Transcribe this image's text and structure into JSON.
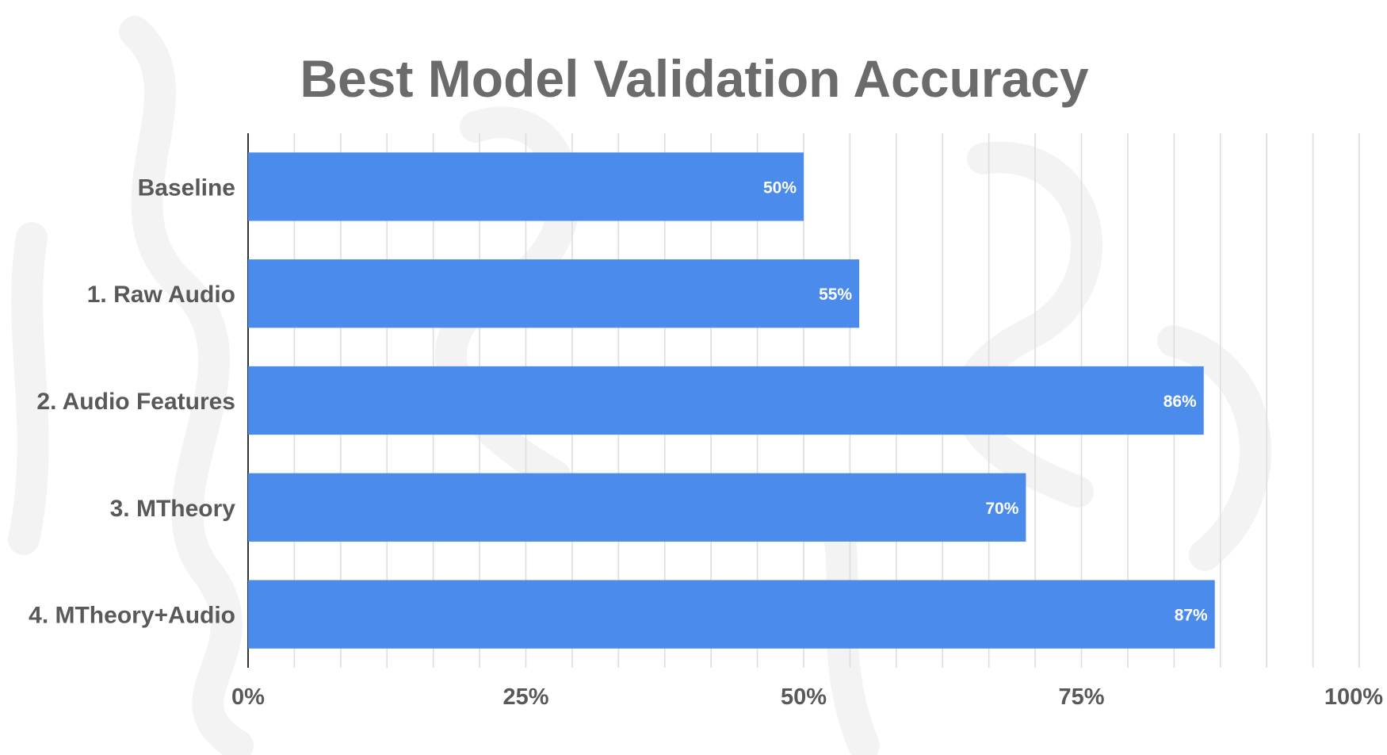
{
  "chart_data": {
    "type": "bar",
    "orientation": "horizontal",
    "title": "Best Model Validation Accuracy",
    "categories": [
      "Baseline",
      "1. Raw Audio",
      "2. Audio Features",
      "3. MTheory",
      "4. MTheory+Audio"
    ],
    "values": [
      50,
      55,
      86,
      70,
      87
    ],
    "data_labels": [
      "50%",
      "55%",
      "86%",
      "70%",
      "87%"
    ],
    "xlabel": "",
    "ylabel": "",
    "xlim": [
      0,
      100
    ],
    "ticks": [
      0,
      25,
      50,
      75,
      100
    ],
    "tick_labels": [
      "0%",
      "25%",
      "50%",
      "75%",
      "100%"
    ],
    "minor_grid_step": 4.1667,
    "grid": true,
    "legend": "none",
    "bar_color": "#4a8bec"
  }
}
